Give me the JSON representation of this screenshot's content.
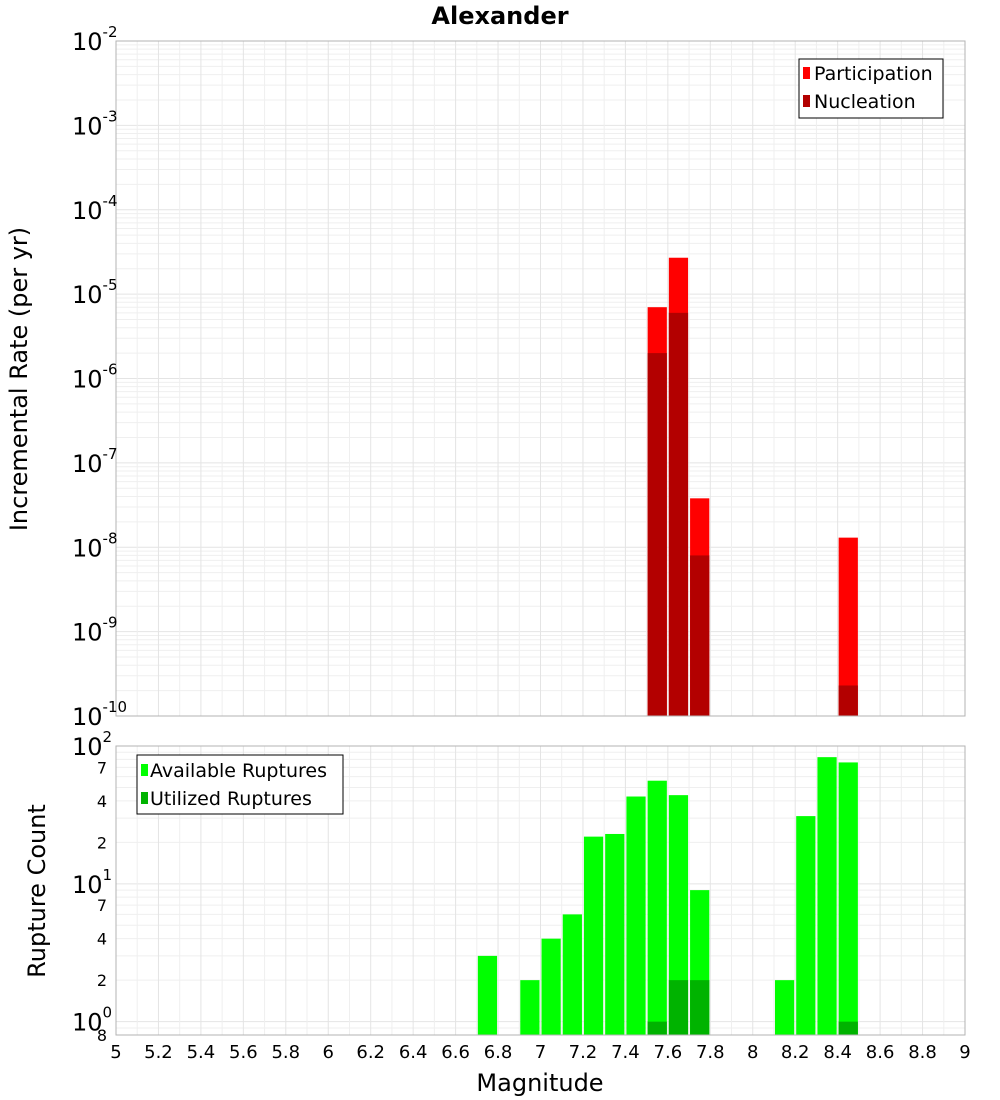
{
  "title": "Alexander",
  "colors": {
    "participation": "#ff0000",
    "nucleation": "#b30000",
    "available": "#00ff00",
    "utilized": "#00b300"
  },
  "chart_data": [
    {
      "type": "bar",
      "panel": "top",
      "title": "Alexander",
      "xlabel": "Magnitude",
      "ylabel": "Incremental Rate (per yr)",
      "yscale": "log",
      "xlim": [
        5,
        9
      ],
      "ylim": [
        1e-10,
        0.01
      ],
      "grid": true,
      "legend_position": "top-right",
      "bar_width": 0.1,
      "y_ticks": [
        {
          "base": "10",
          "exp": "-10",
          "value": 1e-10
        },
        {
          "base": "10",
          "exp": "-9",
          "value": 1e-09
        },
        {
          "base": "10",
          "exp": "-8",
          "value": 1e-08
        },
        {
          "base": "10",
          "exp": "-7",
          "value": 1e-07
        },
        {
          "base": "10",
          "exp": "-6",
          "value": 1e-06
        },
        {
          "base": "10",
          "exp": "-5",
          "value": 1e-05
        },
        {
          "base": "10",
          "exp": "-4",
          "value": 0.0001
        },
        {
          "base": "10",
          "exp": "-3",
          "value": 0.001
        },
        {
          "base": "10",
          "exp": "-2",
          "value": 0.01
        }
      ],
      "series": [
        {
          "name": "Participation",
          "color": "#ff0000",
          "x": [
            7.55,
            7.65,
            7.75,
            8.45
          ],
          "values": [
            7e-06,
            2.7e-05,
            3.8e-08,
            1.3e-08
          ]
        },
        {
          "name": "Nucleation",
          "color": "#b30000",
          "x": [
            7.55,
            7.65,
            7.75,
            8.45
          ],
          "values": [
            2e-06,
            6e-06,
            8e-09,
            2.3e-10
          ]
        }
      ]
    },
    {
      "type": "bar",
      "panel": "bottom",
      "xlabel": "Magnitude",
      "ylabel": "Rupture Count",
      "yscale": "log",
      "xlim": [
        5,
        9
      ],
      "ylim": [
        0.8,
        100
      ],
      "grid": true,
      "legend_position": "top-left",
      "bar_width": 0.1,
      "x_ticks": [
        "5",
        "5.2",
        "5.4",
        "5.6",
        "5.8",
        "6",
        "6.2",
        "6.4",
        "6.6",
        "6.8",
        "7",
        "7.2",
        "7.4",
        "7.6",
        "7.8",
        "8",
        "8.2",
        "8.4",
        "8.6",
        "8.8",
        "9"
      ],
      "y_ticks": [
        {
          "base": "10",
          "exp": "0",
          "value": 1
        },
        {
          "base": "10",
          "exp": "1",
          "value": 10
        },
        {
          "base": "10",
          "exp": "2",
          "value": 100
        }
      ],
      "y_minor_ticks": [
        {
          "label": "8",
          "value": 0.8
        },
        {
          "label": "2",
          "value": 2
        },
        {
          "label": "4",
          "value": 4
        },
        {
          "label": "7",
          "value": 7
        },
        {
          "label": "2",
          "value": 20
        },
        {
          "label": "4",
          "value": 40
        },
        {
          "label": "7",
          "value": 70
        }
      ],
      "series": [
        {
          "name": "Available Ruptures",
          "color": "#00ff00",
          "x": [
            6.75,
            6.95,
            7.05,
            7.15,
            7.25,
            7.35,
            7.45,
            7.55,
            7.65,
            7.75,
            8.15,
            8.25,
            8.35,
            8.45
          ],
          "values": [
            3,
            2,
            4,
            6,
            22,
            23,
            43,
            56,
            44,
            9,
            2,
            31,
            83,
            76
          ]
        },
        {
          "name": "Utilized Ruptures",
          "color": "#00b300",
          "x": [
            7.55,
            7.65,
            7.75,
            8.45
          ],
          "values": [
            1,
            2,
            2,
            1
          ]
        }
      ]
    }
  ]
}
